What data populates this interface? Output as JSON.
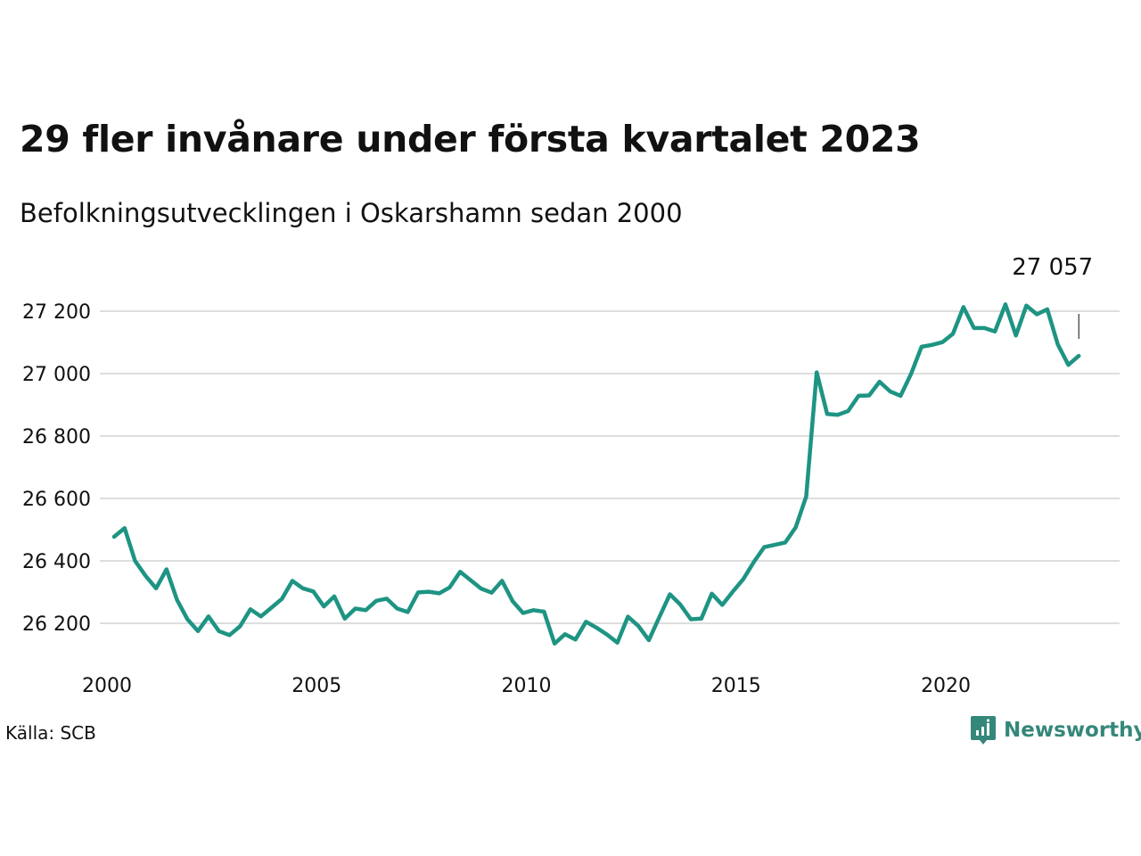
{
  "chart_data": {
    "type": "line",
    "title": "29 fler invånare under första kvartalet 2023",
    "subtitle": "Befolkningsutvecklingen i Oskarshamn sedan 2000",
    "xlabel": "",
    "ylabel": "",
    "x_ticks": [
      "2000",
      "2005",
      "2010",
      "2015",
      "2020"
    ],
    "x_tick_values": [
      2000,
      2005,
      2010,
      2015,
      2020
    ],
    "y_ticks": [
      "26 200",
      "26 400",
      "26 600",
      "26 800",
      "27 000",
      "27 200"
    ],
    "y_tick_values": [
      26200,
      26400,
      26600,
      26800,
      27000,
      27200
    ],
    "xlim": [
      2000,
      2023.25
    ],
    "ylim": [
      26100,
      27300
    ],
    "grid": true,
    "line_color": "#1e9483",
    "annotation": {
      "label": "27 057",
      "x": 2023.0,
      "y": 27057
    },
    "series": [
      {
        "x": [
          2000.0,
          2000.25,
          2000.5,
          2000.75,
          2001.0,
          2001.25,
          2001.5,
          2001.75,
          2002.0,
          2002.25,
          2002.5,
          2002.75,
          2003.0,
          2003.25,
          2003.5,
          2003.75,
          2004.0,
          2004.25,
          2004.5,
          2004.75,
          2005.0,
          2005.25,
          2005.5,
          2005.75,
          2006.0,
          2006.25,
          2006.5,
          2006.75,
          2007.0,
          2007.25,
          2007.5,
          2007.75,
          2008.0,
          2008.25,
          2008.5,
          2008.75,
          2009.0,
          2009.25,
          2009.5,
          2009.75,
          2010.0,
          2010.25,
          2010.5,
          2010.75,
          2011.0,
          2011.25,
          2011.5,
          2011.75,
          2012.0,
          2012.25,
          2012.5,
          2012.75,
          2013.0,
          2013.25,
          2013.5,
          2013.75,
          2014.0,
          2014.25,
          2014.5,
          2014.75,
          2015.0,
          2015.25,
          2015.5,
          2015.75,
          2016.0,
          2016.25,
          2016.5,
          2016.75,
          2017.0,
          2017.25,
          2017.5,
          2017.75,
          2018.0,
          2018.25,
          2018.5,
          2018.75,
          2019.0,
          2019.25,
          2019.5,
          2019.75,
          2020.0,
          2020.25,
          2020.5,
          2020.75,
          2021.0,
          2021.25,
          2021.5,
          2021.75,
          2022.0,
          2022.25,
          2022.5,
          2022.75,
          2023.0
        ],
        "values": [
          26477,
          26505,
          26400,
          26352,
          26312,
          26373,
          26275,
          26213,
          26175,
          26222,
          26175,
          26162,
          26190,
          26245,
          26222,
          26250,
          26278,
          26336,
          26312,
          26302,
          26254,
          26286,
          26215,
          26247,
          26242,
          26272,
          26279,
          26247,
          26236,
          26299,
          26301,
          26296,
          26315,
          26365,
          26338,
          26311,
          26298,
          26336,
          26271,
          26233,
          26242,
          26237,
          26135,
          26165,
          26148,
          26205,
          26186,
          26164,
          26138,
          26221,
          26191,
          26146,
          26220,
          26293,
          26260,
          26213,
          26215,
          26295,
          26259,
          26301,
          26341,
          26396,
          26444,
          26451,
          26459,
          26507,
          26606,
          27004,
          26871,
          26868,
          26880,
          26929,
          26930,
          26974,
          26943,
          26929,
          26999,
          27086,
          27092,
          27101,
          27128,
          27213,
          27146,
          27146,
          27135,
          27222,
          27122,
          27218,
          27190,
          27206,
          27093,
          27028,
          27057
        ]
      }
    ]
  },
  "footer": {
    "source": "Källa: SCB",
    "brand": "Newsworthy"
  },
  "colors": {
    "brand": "#35877a",
    "grid": "#dedede",
    "text": "#111111"
  }
}
